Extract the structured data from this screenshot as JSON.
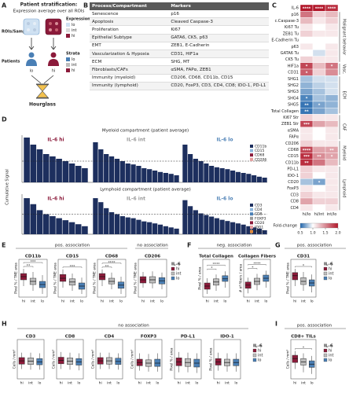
{
  "panelA": {
    "letter": "A",
    "title": "Patient stratification:",
    "subtitle": "Expression average over all ROIs",
    "rois": "ROIs/Samples",
    "expression": "Expression",
    "expr_levels": [
      "lo",
      "int",
      "hi"
    ],
    "patients": "Patients",
    "strata": "Strata",
    "strata_levels": [
      "lo",
      "int",
      "hi"
    ],
    "patient_labels": [
      "lo",
      "hi"
    ],
    "hourglass": "Hourglass"
  },
  "panelB": {
    "letter": "B",
    "header": [
      "Process/Compartment",
      "Markers"
    ],
    "rows": [
      [
        "Senescence",
        "p16"
      ],
      [
        "Apoptosis",
        "Cleaved Caspase-3"
      ],
      [
        "Proliferation",
        "Ki67"
      ],
      [
        "Epithelial Subtype",
        "GATA6, CK5, p63"
      ],
      [
        "EMT",
        "ZEB1, E-Cadherin"
      ],
      [
        "Vascularization & Hypoxia",
        "CD31, HIF1a"
      ],
      [
        "ECM",
        "SHG, MT"
      ],
      [
        "Fibroblasts/CAFs",
        "αSMA, FAPα, ZEB1"
      ],
      [
        "Immunity (myeloid)",
        "CD206, CD68, CD11b, CD15"
      ],
      [
        "Immunity (lymphoid)",
        "CD20, FoxP3, CD3, CD4, CD8; IDO-1, PD-L1"
      ]
    ]
  },
  "panelC": {
    "letter": "C",
    "columns": [
      "hi/lo",
      "hi/int",
      "int/lo"
    ],
    "rows": [
      "IL-6",
      "p16",
      "c.Caspase-3",
      "Ki67 Tu",
      "ZEB1 Tu",
      "E-Cadherin Tu",
      "p63",
      "GATA6 Tu",
      "CK5 Tu",
      "HIF1a",
      "CD31",
      "SHG1",
      "SHG2",
      "SHG3",
      "SHG4",
      "SHG5",
      "Total Collagen",
      "Ki67 Str",
      "ZEB1 Str",
      "αSMA",
      "FAPα",
      "CD206",
      "CD68",
      "CD15",
      "CD11b",
      "PD-L1",
      "IDO-1",
      "CD20",
      "FoxP3",
      "CD3",
      "CD8",
      "CD4"
    ],
    "values": [
      [
        2,
        2,
        1.9
      ],
      [
        1.6,
        1.2,
        1.3
      ],
      [
        1.3,
        1.1,
        1.2
      ],
      [
        1.1,
        1,
        1.1
      ],
      [
        1.2,
        1.1,
        1.1
      ],
      [
        1,
        1,
        1
      ],
      [
        1.1,
        1,
        1.1
      ],
      [
        1,
        0.9,
        1.1
      ],
      [
        1.2,
        1.1,
        1.1
      ],
      [
        1.8,
        1.3,
        1.6
      ],
      [
        1.7,
        1.2,
        1.5
      ],
      [
        0.8,
        0.9,
        0.9
      ],
      [
        0.75,
        0.85,
        0.9
      ],
      [
        0.7,
        0.8,
        0.9
      ],
      [
        0.6,
        0.8,
        0.75
      ],
      [
        0.55,
        0.7,
        0.75
      ],
      [
        0.55,
        0.7,
        0.8
      ],
      [
        1.2,
        1.1,
        1.1
      ],
      [
        1.8,
        1.4,
        1.3
      ],
      [
        1.1,
        1,
        1.1
      ],
      [
        1.1,
        1,
        1.1
      ],
      [
        1.2,
        1.1,
        1.1
      ],
      [
        1.8,
        1.4,
        1.4
      ],
      [
        1.9,
        1.5,
        1.4
      ],
      [
        1.9,
        1.6,
        1.3
      ],
      [
        1.2,
        1.1,
        1.1
      ],
      [
        1.2,
        1,
        1.1
      ],
      [
        0.8,
        0.7,
        1.1
      ],
      [
        1.1,
        1,
        1.1
      ],
      [
        1.2,
        1.1,
        1.1
      ],
      [
        1.4,
        1.2,
        1.2
      ],
      [
        1.1,
        1,
        1.1
      ]
    ],
    "stars": [
      {
        "cell": [
          0,
          0
        ],
        "label": "****"
      },
      {
        "cell": [
          0,
          1
        ],
        "label": "****"
      },
      {
        "cell": [
          0,
          2
        ],
        "label": "****"
      },
      {
        "cell": [
          9,
          0
        ],
        "label": "*"
      },
      {
        "cell": [
          9,
          2
        ],
        "label": "*"
      },
      {
        "cell": [
          10,
          0
        ],
        "label": "*"
      },
      {
        "cell": [
          14,
          0
        ],
        "label": "*"
      },
      {
        "cell": [
          15,
          0
        ],
        "label": "**"
      },
      {
        "cell": [
          15,
          1
        ],
        "label": "*"
      },
      {
        "cell": [
          16,
          0
        ],
        "label": "**"
      },
      {
        "cell": [
          18,
          0
        ],
        "label": "***"
      },
      {
        "cell": [
          22,
          0
        ],
        "label": "****"
      },
      {
        "cell": [
          22,
          2
        ],
        "label": "**"
      },
      {
        "cell": [
          23,
          0
        ],
        "label": "***"
      },
      {
        "cell": [
          23,
          1
        ],
        "label": "**"
      },
      {
        "cell": [
          23,
          2
        ],
        "label": "*"
      },
      {
        "cell": [
          24,
          0
        ],
        "label": "**"
      },
      {
        "cell": [
          27,
          1
        ],
        "label": "*"
      }
    ],
    "groups": [
      {
        "label": "Malignant behavior",
        "rows": [
          1,
          8
        ]
      },
      {
        "label": "Vasc.",
        "rows": [
          9,
          10
        ]
      },
      {
        "label": "ECM",
        "rows": [
          11,
          16
        ]
      },
      {
        "label": "CAF",
        "rows": [
          17,
          20
        ]
      },
      {
        "label": "Myeloid",
        "rows": [
          21,
          24
        ]
      },
      {
        "label": "Lymphoid",
        "rows": [
          25,
          31
        ]
      }
    ],
    "legend_title": "Fold-change",
    "legend_ticks": [
      0.5,
      {
        "value": 1,
        "label": "1.0"
      },
      1.5,
      {
        "value": 2,
        "label": "2.0"
      }
    ]
  },
  "panelD": {
    "letter": "D",
    "ylabel": "Cumulative Signal",
    "groups": [
      "IL-6 hi",
      "IL-6 int",
      "IL-6 lo"
    ],
    "group_colors": [
      "#8b1a3a",
      "#9a9a9a",
      "#4a7fb5"
    ],
    "ylim": [
      0,
      1
    ],
    "myeloid": {
      "title": "Myeloid compartment (patient average)",
      "legend": [
        "CD11b",
        "CD15",
        "CD68",
        "CD206"
      ],
      "colors": [
        "#1d2f5e",
        "#8fb8de",
        "#8b1a3a",
        "#e8a0a0"
      ],
      "threshold": 0.45,
      "bars": [
        [
          0.95,
          0.8,
          0.7,
          0.6,
          0.55,
          0.5,
          0.45,
          0.4,
          0.35,
          0.3
        ],
        [
          0.85,
          0.7,
          0.6,
          0.55,
          0.5,
          0.45,
          0.4,
          0.38,
          0.35,
          0.3,
          0.28,
          0.25,
          0.22,
          0.2,
          0.18,
          0.15
        ],
        [
          0.8,
          0.6,
          0.5,
          0.45,
          0.4,
          0.35,
          0.32,
          0.3,
          0.28,
          0.25,
          0.22,
          0.2,
          0.18,
          0.15,
          0.12,
          0.1
        ]
      ]
    },
    "lymphoid": {
      "title": "Lymphoid compartment (patient average)",
      "legend": [
        "CD3",
        "CD4",
        "CD8",
        "FOXP3",
        "CD20",
        "IDO1",
        "PDL1"
      ],
      "colors": [
        "#1d2f5e",
        "#8fb8de",
        "#4a7fb5",
        "#9a9a9a",
        "#8b1a3a",
        "#e8a0a0",
        "#e08a3c"
      ],
      "threshold": 0.5,
      "bars": [
        [
          0.9,
          0.75,
          0.6,
          0.5,
          0.45,
          0.4,
          0.35,
          0.3,
          0.25,
          0.2
        ],
        [
          0.9,
          0.8,
          0.65,
          0.55,
          0.5,
          0.45,
          0.42,
          0.4,
          0.36,
          0.32,
          0.3,
          0.27,
          0.24,
          0.2,
          0.17,
          0.14
        ],
        [
          0.85,
          0.7,
          0.6,
          0.52,
          0.48,
          0.44,
          0.4,
          0.36,
          0.33,
          0.3,
          0.27,
          0.24,
          0.2,
          0.17,
          0.14,
          0.1
        ]
      ]
    }
  },
  "panelE": {
    "letter": "E",
    "headers": [
      "pos. association",
      "no association"
    ],
    "categories": [
      "hi",
      "int",
      "lo"
    ],
    "colors": [
      "#8b1a3a",
      "#bdbdbd",
      "#4a7fb5"
    ],
    "legend_title": "IL-6",
    "ylim": [
      0,
      1.2
    ],
    "plots": [
      {
        "title": "CD11b",
        "ylabel": "Pixel % / TME area",
        "boxes": [
          [
            0.35,
            0.55,
            0.65,
            0.75,
            0.9
          ],
          [
            0.2,
            0.4,
            0.5,
            0.6,
            0.8
          ],
          [
            0.1,
            0.3,
            0.4,
            0.5,
            0.7
          ]
        ],
        "sig": {
          "hi_int": "**",
          "hi_lo": "***"
        }
      },
      {
        "title": "CD15",
        "ylabel": "Pixel % / TME area",
        "boxes": [
          [
            0.3,
            0.5,
            0.6,
            0.72,
            0.88
          ],
          [
            0.2,
            0.38,
            0.48,
            0.58,
            0.75
          ],
          [
            0.1,
            0.25,
            0.35,
            0.45,
            0.62
          ]
        ],
        "sig": {
          "hi_lo": "***"
        }
      },
      {
        "title": "CD68",
        "ylabel": "Pixel % / TME area",
        "boxes": [
          [
            0.35,
            0.55,
            0.65,
            0.75,
            0.88
          ],
          [
            0.25,
            0.42,
            0.5,
            0.6,
            0.78
          ],
          [
            0.1,
            0.28,
            0.38,
            0.48,
            0.65
          ]
        ],
        "sig": {
          "hi_int": "**",
          "hi_lo": "****"
        }
      },
      {
        "title": "CD206",
        "ylabel": "Pixel % / TME area",
        "boxes": [
          [
            0.3,
            0.45,
            0.55,
            0.65,
            0.8
          ],
          [
            0.28,
            0.45,
            0.55,
            0.65,
            0.82
          ],
          [
            0.25,
            0.42,
            0.52,
            0.62,
            0.78
          ]
        ],
        "sig": {}
      }
    ]
  },
  "panelF": {
    "letter": "F",
    "headers": [
      "neg. association"
    ],
    "categories": [
      "hi",
      "int",
      "lo"
    ],
    "colors": [
      "#8b1a3a",
      "#bdbdbd",
      "#4a7fb5"
    ],
    "ylim": [
      0,
      1.2
    ],
    "plots": [
      {
        "title": "Total Collagen",
        "ylabel": "Pixel % / area",
        "boxes": [
          [
            0.1,
            0.25,
            0.35,
            0.45,
            0.6
          ],
          [
            0.2,
            0.38,
            0.48,
            0.58,
            0.72
          ],
          [
            0.3,
            0.5,
            0.58,
            0.68,
            0.82
          ]
        ],
        "sig": {
          "hi_int": "*",
          "hi_lo": "****"
        }
      },
      {
        "title": "Collagen Fibers",
        "ylabel": "# of fibers / area",
        "boxes": [
          [
            0.12,
            0.28,
            0.38,
            0.48,
            0.62
          ],
          [
            0.22,
            0.4,
            0.5,
            0.6,
            0.74
          ],
          [
            0.3,
            0.5,
            0.6,
            0.7,
            0.84
          ]
        ],
        "sig": {
          "hi_int": "*",
          "hi_lo": "****"
        }
      }
    ]
  },
  "panelG": {
    "letter": "G",
    "headers": [
      "pos. association"
    ],
    "categories": [
      "hi",
      "int",
      "lo"
    ],
    "colors": [
      "#8b1a3a",
      "#bdbdbd",
      "#4a7fb5"
    ],
    "legend_title": "IL-6",
    "ylim": [
      0,
      1.2
    ],
    "plots": [
      {
        "title": "CD31",
        "ylabel": "Pixel % / TME area",
        "boxes": [
          [
            0.35,
            0.55,
            0.68,
            0.78,
            0.9
          ],
          [
            0.2,
            0.4,
            0.5,
            0.62,
            0.8
          ],
          [
            0.15,
            0.35,
            0.45,
            0.55,
            0.72
          ]
        ],
        "sig": {
          "hi_lo": "*"
        }
      }
    ]
  },
  "panelH": {
    "letter": "H",
    "headers": [
      "no association"
    ],
    "categories": [
      "hi",
      "int",
      "lo"
    ],
    "colors": [
      "#8b1a3a",
      "#bdbdbd",
      "#4a7fb5"
    ],
    "legend_title": "IL-6",
    "ylim": [
      0,
      1.2
    ],
    "plots": [
      {
        "title": "CD3",
        "ylabel": "Cells / mm²",
        "boxes": [
          [
            0.3,
            0.45,
            0.55,
            0.65,
            0.8
          ],
          [
            0.28,
            0.44,
            0.54,
            0.64,
            0.8
          ],
          [
            0.28,
            0.43,
            0.52,
            0.62,
            0.78
          ]
        ],
        "sig": {}
      },
      {
        "title": "CD8",
        "ylabel": "Cells / mm²",
        "boxes": [
          [
            0.3,
            0.46,
            0.56,
            0.66,
            0.82
          ],
          [
            0.28,
            0.44,
            0.54,
            0.64,
            0.8
          ],
          [
            0.26,
            0.42,
            0.52,
            0.62,
            0.78
          ]
        ],
        "sig": {}
      },
      {
        "title": "CD4",
        "ylabel": "Cells / mm²",
        "boxes": [
          [
            0.3,
            0.45,
            0.55,
            0.65,
            0.8
          ],
          [
            0.3,
            0.45,
            0.55,
            0.65,
            0.8
          ],
          [
            0.28,
            0.44,
            0.53,
            0.63,
            0.78
          ]
        ],
        "sig": {}
      },
      {
        "title": "FOXP3",
        "ylabel": "Cells / mm²",
        "boxes": [
          [
            0.25,
            0.4,
            0.5,
            0.6,
            0.78
          ],
          [
            0.22,
            0.38,
            0.48,
            0.58,
            0.76
          ],
          [
            0.22,
            0.38,
            0.48,
            0.6,
            0.78
          ]
        ],
        "sig": {}
      },
      {
        "title": "PD-L1",
        "ylabel": "Pixel % / area",
        "boxes": [
          [
            0.2,
            0.4,
            0.52,
            0.64,
            0.82
          ],
          [
            0.2,
            0.38,
            0.5,
            0.62,
            0.8
          ],
          [
            0.18,
            0.36,
            0.48,
            0.6,
            0.78
          ]
        ],
        "sig": {}
      },
      {
        "title": "IDO-1",
        "ylabel": "Pixel % / area",
        "boxes": [
          [
            0.25,
            0.42,
            0.52,
            0.62,
            0.8
          ],
          [
            0.22,
            0.4,
            0.5,
            0.6,
            0.78
          ],
          [
            0.22,
            0.4,
            0.5,
            0.6,
            0.78
          ]
        ],
        "sig": {}
      }
    ]
  },
  "panelI": {
    "letter": "I",
    "headers": [
      "pos. association"
    ],
    "categories": [
      "hi",
      "int",
      "lo"
    ],
    "colors": [
      "#8b1a3a",
      "#bdbdbd",
      "#4a7fb5"
    ],
    "legend_title": "IL-6",
    "ylim": [
      0,
      1.2
    ],
    "plots": [
      {
        "title": "CD8+ TILs",
        "ylabel": "Cells / mm²",
        "boxes": [
          [
            0.3,
            0.5,
            0.62,
            0.72,
            0.85
          ],
          [
            0.2,
            0.42,
            0.52,
            0.62,
            0.78
          ],
          [
            0.15,
            0.35,
            0.45,
            0.55,
            0.7
          ]
        ],
        "sig": {
          "hi_lo": "*"
        }
      }
    ]
  }
}
